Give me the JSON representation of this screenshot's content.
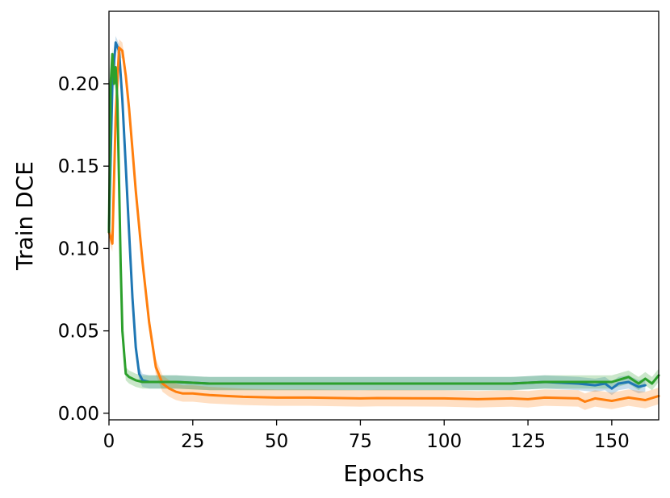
{
  "chart_data": {
    "type": "line",
    "xlabel": "Epochs",
    "ylabel": "Train DCE",
    "xlim": [
      0,
      164
    ],
    "ylim": [
      -0.004,
      0.244
    ],
    "xticks": [
      0,
      25,
      50,
      75,
      100,
      125,
      150
    ],
    "yticks": [
      0.0,
      0.05,
      0.1,
      0.15,
      0.2
    ],
    "ytick_labels": [
      "0.00",
      "0.05",
      "0.10",
      "0.15",
      "0.20"
    ],
    "grid": false,
    "series": [
      {
        "color": "#1f77b4",
        "band_halfwidth": 0.004,
        "x": [
          0,
          1,
          2,
          3,
          4,
          5,
          6,
          7,
          8,
          9,
          10,
          12,
          15,
          20,
          30,
          40,
          60,
          80,
          100,
          120,
          130,
          140,
          145,
          148,
          150,
          152,
          155,
          158,
          160
        ],
        "y": [
          0.11,
          0.2,
          0.225,
          0.22,
          0.19,
          0.15,
          0.11,
          0.07,
          0.04,
          0.024,
          0.02,
          0.019,
          0.019,
          0.019,
          0.018,
          0.018,
          0.018,
          0.018,
          0.018,
          0.018,
          0.019,
          0.018,
          0.017,
          0.018,
          0.015,
          0.018,
          0.019,
          0.016,
          0.017
        ]
      },
      {
        "color": "#ff7f0e",
        "band_halfwidth": 0.005,
        "x": [
          0,
          1,
          2,
          3,
          4,
          5,
          6,
          7,
          8,
          10,
          12,
          14,
          16,
          18,
          20,
          22,
          25,
          30,
          35,
          40,
          50,
          60,
          75,
          80,
          100,
          110,
          120,
          125,
          130,
          140,
          142,
          145,
          150,
          155,
          160,
          164
        ],
        "y": [
          0.11,
          0.103,
          0.18,
          0.222,
          0.22,
          0.205,
          0.185,
          0.16,
          0.135,
          0.092,
          0.055,
          0.028,
          0.018,
          0.015,
          0.013,
          0.012,
          0.012,
          0.011,
          0.0105,
          0.01,
          0.0095,
          0.0095,
          0.009,
          0.0092,
          0.009,
          0.0085,
          0.009,
          0.0085,
          0.0095,
          0.009,
          0.007,
          0.009,
          0.0075,
          0.0095,
          0.008,
          0.0105
        ]
      },
      {
        "color": "#2ca02c",
        "band_halfwidth": 0.004,
        "x": [
          0,
          0.5,
          1,
          1.5,
          2,
          2.5,
          3,
          3.5,
          4,
          5,
          6,
          7,
          8,
          10,
          15,
          20,
          30,
          40,
          60,
          80,
          100,
          120,
          130,
          140,
          150,
          155,
          158,
          160,
          162,
          164
        ],
        "y": [
          0.11,
          0.2,
          0.218,
          0.2,
          0.21,
          0.19,
          0.14,
          0.09,
          0.05,
          0.024,
          0.022,
          0.021,
          0.02,
          0.019,
          0.019,
          0.019,
          0.018,
          0.018,
          0.018,
          0.018,
          0.018,
          0.018,
          0.019,
          0.019,
          0.019,
          0.022,
          0.018,
          0.021,
          0.018,
          0.023
        ]
      }
    ]
  }
}
